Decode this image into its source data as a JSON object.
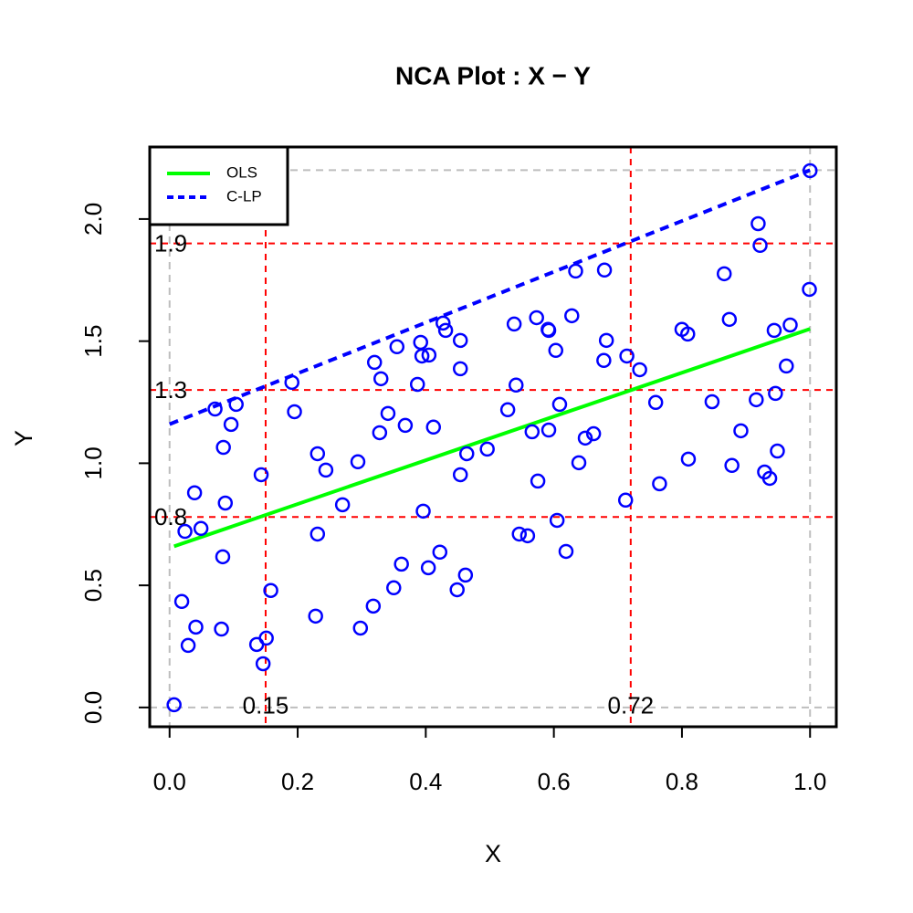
{
  "chart_data": {
    "type": "scatter",
    "title": "NCA Plot : X − Y",
    "x_label": "X",
    "y_label": "Y",
    "xlim": [
      -0.031,
      1.041
    ],
    "ylim": [
      -0.079,
      2.295
    ],
    "xticks": [
      {
        "value": 0,
        "label": "0.0"
      },
      0.2,
      0.4,
      0.6,
      0.8,
      {
        "value": 1,
        "label": "1.0"
      }
    ],
    "yticks": [
      {
        "value": 0,
        "label": "0.0"
      },
      0.5,
      {
        "value": 1,
        "label": "1.0"
      },
      1.5,
      {
        "value": 2,
        "label": "2.0"
      }
    ],
    "color": "#0000ff",
    "x": [
      0.007,
      0.019,
      0.029,
      0.024,
      0.039,
      0.049,
      0.041,
      0.071,
      0.084,
      0.087,
      0.096,
      0.104,
      0.083,
      0.081,
      0.136,
      0.143,
      0.146,
      0.151,
      0.158,
      0.191,
      0.195,
      0.228,
      0.231,
      0.231,
      0.244,
      0.27,
      0.294,
      0.298,
      0.318,
      0.32,
      0.328,
      0.33,
      0.341,
      0.35,
      0.355,
      0.362,
      0.368,
      0.387,
      0.392,
      0.394,
      0.396,
      0.404,
      0.405,
      0.412,
      0.422,
      0.427,
      0.431,
      0.449,
      0.454,
      0.454,
      0.454,
      0.462,
      0.464,
      0.496,
      0.528,
      0.538,
      0.541,
      0.546,
      0.559,
      0.566,
      0.575,
      0.573,
      0.591,
      0.592,
      0.592,
      0.603,
      0.605,
      0.609,
      0.619,
      0.628,
      0.634,
      0.639,
      0.649,
      0.662,
      0.678,
      0.679,
      0.682,
      0.712,
      0.714,
      0.734,
      0.759,
      0.765,
      0.8,
      0.809,
      0.81,
      0.847,
      0.866,
      0.874,
      0.878,
      0.892,
      0.916,
      0.919,
      0.922,
      0.929,
      0.937,
      0.944,
      0.946,
      0.949,
      0.963,
      0.969,
      0.999,
      1.0
    ],
    "values": [
      0.011,
      0.434,
      0.254,
      0.721,
      0.879,
      0.733,
      0.329,
      1.222,
      1.065,
      0.837,
      1.159,
      1.241,
      0.617,
      0.321,
      0.258,
      0.953,
      0.179,
      0.284,
      0.479,
      1.331,
      1.211,
      0.374,
      1.039,
      0.71,
      0.972,
      0.83,
      1.006,
      0.325,
      0.415,
      1.413,
      1.125,
      1.346,
      1.204,
      0.49,
      1.477,
      0.587,
      1.155,
      1.323,
      1.495,
      1.439,
      0.804,
      0.572,
      1.443,
      1.148,
      0.636,
      1.574,
      1.544,
      0.482,
      1.503,
      1.387,
      0.953,
      0.542,
      1.039,
      1.058,
      1.219,
      1.57,
      1.32,
      0.71,
      0.703,
      1.129,
      0.927,
      1.596,
      1.548,
      1.136,
      1.544,
      1.462,
      0.766,
      1.241,
      0.639,
      1.604,
      1.787,
      1.002,
      1.103,
      1.121,
      1.421,
      1.791,
      1.503,
      0.849,
      1.439,
      1.383,
      1.249,
      0.916,
      1.548,
      1.529,
      1.017,
      1.252,
      1.776,
      1.589,
      0.991,
      1.133,
      1.26,
      1.981,
      1.892,
      0.964,
      0.938,
      1.544,
      1.286,
      1.05,
      1.398,
      1.566,
      1.712,
      2.198
    ],
    "lines": [
      {
        "name": "OLS",
        "color": "#00ff00",
        "dashed": false,
        "x": [
          0.007,
          1.0
        ],
        "values": [
          0.66,
          1.55
        ]
      },
      {
        "name": "C-LP",
        "color": "#0000ff",
        "dashed": true,
        "x": [
          0.0,
          1.0
        ],
        "values": [
          1.16,
          2.2
        ]
      }
    ],
    "reference_x": [
      0.15,
      0.72
    ],
    "reference_y": [
      1.9,
      1.3,
      {
        "value": 0.78,
        "label": "0.8"
      }
    ],
    "reference_color": "#ff0000",
    "scope_x": [
      0,
      1
    ],
    "scope_y": [
      0,
      2.2
    ],
    "scope_color": "#bebebe",
    "legend": "top-left"
  }
}
